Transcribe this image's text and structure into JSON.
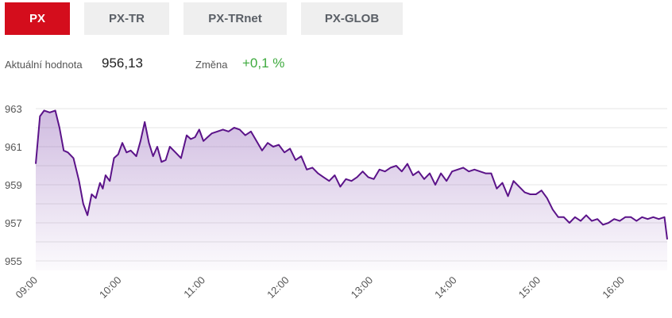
{
  "tabs": [
    {
      "label": "PX",
      "active": true
    },
    {
      "label": "PX-TR",
      "active": false
    },
    {
      "label": "PX-TRnet",
      "active": false
    },
    {
      "label": "PX-GLOB",
      "active": false
    }
  ],
  "stats": {
    "current_label": "Aktuální hodnota",
    "current_value": "956,13",
    "change_label": "Změna",
    "change_value": "+0,1 %"
  },
  "colors": {
    "tab_active": "#d40d1c",
    "tab_inactive": "#efefef",
    "change_positive": "#3eaa3e",
    "line": "#5b1389"
  },
  "chart_data": {
    "type": "area",
    "title": "",
    "xlabel": "",
    "ylabel": "",
    "grid": true,
    "ylim": [
      954.5,
      963.5
    ],
    "y_ticks": [
      "955",
      "957",
      "959",
      "961",
      "963"
    ],
    "x_ticks": [
      "09:00",
      "10:00",
      "11:00",
      "12:00",
      "13:00",
      "14:00",
      "15:00",
      "16:00"
    ],
    "series": [
      {
        "x": [
          "09:00",
          "09:03",
          "09:06",
          "09:10",
          "09:14",
          "09:17",
          "09:20",
          "09:23",
          "09:27",
          "09:31",
          "09:34",
          "09:37",
          "09:40",
          "09:43",
          "09:46",
          "09:48",
          "09:50",
          "09:53",
          "09:56",
          "09:59",
          "10:02",
          "10:05",
          "10:08",
          "10:12",
          "10:15",
          "10:18",
          "10:21",
          "10:24",
          "10:27",
          "10:30",
          "10:33",
          "10:36",
          "10:40",
          "10:44",
          "10:48",
          "10:51",
          "10:54",
          "10:57",
          "11:00",
          "11:03",
          "11:06",
          "11:10",
          "11:14",
          "11:18",
          "11:22",
          "11:26",
          "11:30",
          "11:34",
          "11:38",
          "11:42",
          "11:46",
          "11:50",
          "11:54",
          "11:58",
          "12:02",
          "12:06",
          "12:10",
          "12:14",
          "12:18",
          "12:22",
          "12:26",
          "12:30",
          "12:34",
          "12:38",
          "12:42",
          "12:46",
          "12:50",
          "12:54",
          "12:58",
          "13:02",
          "13:06",
          "13:10",
          "13:14",
          "13:18",
          "13:22",
          "13:26",
          "13:30",
          "13:34",
          "13:38",
          "13:42",
          "13:46",
          "13:50",
          "13:54",
          "13:58",
          "14:02",
          "14:06",
          "14:10",
          "14:14",
          "14:18",
          "14:22",
          "14:26",
          "14:30",
          "14:34",
          "14:38",
          "14:42",
          "14:46",
          "14:50",
          "14:54",
          "14:58",
          "15:02",
          "15:06",
          "15:10",
          "15:14",
          "15:18",
          "15:22",
          "15:26",
          "15:30",
          "15:34",
          "15:38",
          "15:42",
          "15:46",
          "15:50",
          "15:54",
          "15:58",
          "16:02",
          "16:06",
          "16:10",
          "16:14",
          "16:18",
          "16:22",
          "16:26",
          "16:30",
          "16:32"
        ],
        "values": [
          960.1,
          962.6,
          962.9,
          962.8,
          962.9,
          962.0,
          960.8,
          960.7,
          960.4,
          959.2,
          958.0,
          957.4,
          958.5,
          958.3,
          959.1,
          958.8,
          959.5,
          959.2,
          960.4,
          960.6,
          961.2,
          960.7,
          960.8,
          960.5,
          961.3,
          962.3,
          961.2,
          960.5,
          961.0,
          960.2,
          960.3,
          961.0,
          960.7,
          960.4,
          961.6,
          961.4,
          961.5,
          961.9,
          961.3,
          961.5,
          961.7,
          961.8,
          961.9,
          961.8,
          962.0,
          961.9,
          961.6,
          961.8,
          961.3,
          960.8,
          961.2,
          961.0,
          961.1,
          960.7,
          960.9,
          960.3,
          960.5,
          959.8,
          959.9,
          959.6,
          959.4,
          959.2,
          959.5,
          958.9,
          959.3,
          959.2,
          959.4,
          959.7,
          959.4,
          959.3,
          959.8,
          959.7,
          959.9,
          960.0,
          959.7,
          960.1,
          959.5,
          959.7,
          959.3,
          959.6,
          959.0,
          959.6,
          959.2,
          959.7,
          959.8,
          959.9,
          959.7,
          959.8,
          959.7,
          959.6,
          959.6,
          958.8,
          959.1,
          958.4,
          959.2,
          958.9,
          958.6,
          958.5,
          958.5,
          958.7,
          958.3,
          957.7,
          957.3,
          957.3,
          957.0,
          957.3,
          957.1,
          957.4,
          957.1,
          957.2,
          956.9,
          957.0,
          957.2,
          957.1,
          957.3,
          957.3,
          957.1,
          957.3,
          957.2,
          957.3,
          957.2,
          957.3,
          956.13
        ]
      }
    ]
  }
}
